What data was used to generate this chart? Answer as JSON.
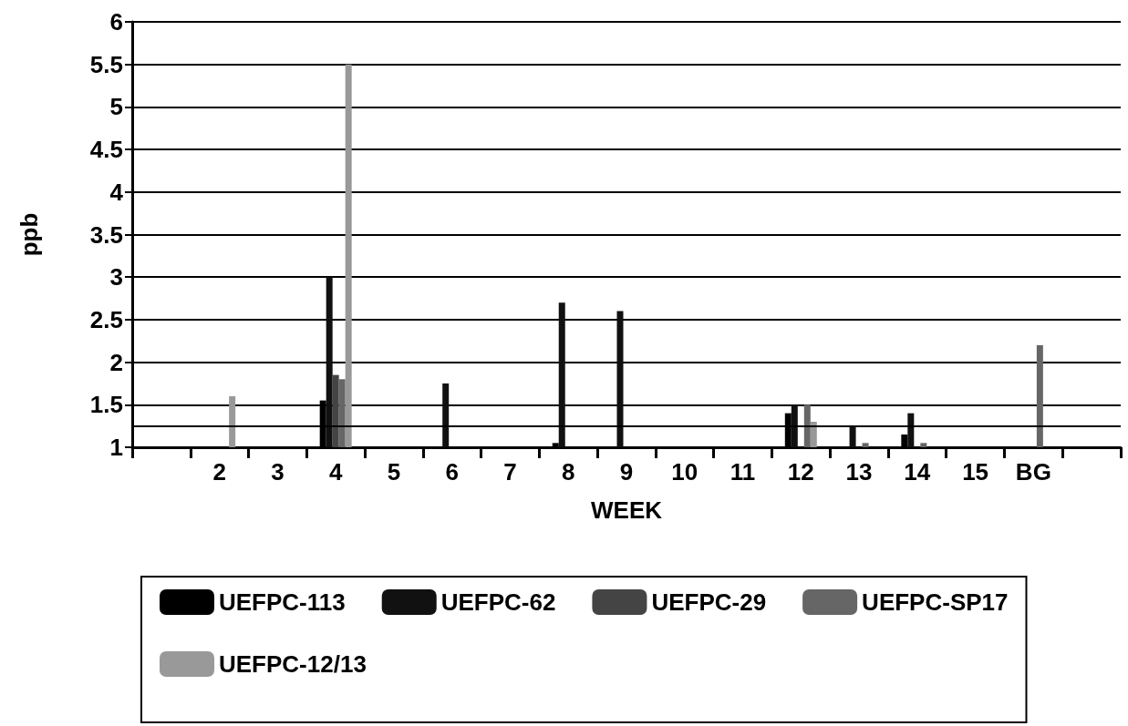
{
  "chart_data": {
    "type": "bar",
    "xlabel": "WEEK",
    "ylabel": "ppb",
    "categories": [
      null,
      "2",
      "3",
      "4",
      "5",
      "6",
      "7",
      "8",
      "9",
      "10",
      "11",
      "12",
      "13",
      "14",
      "15",
      "BG",
      null
    ],
    "series": [
      {
        "name": "UEFPC-113",
        "color": "#000000",
        "values": [
          null,
          null,
          null,
          1.55,
          null,
          null,
          null,
          1.05,
          null,
          null,
          null,
          1.4,
          null,
          1.15,
          null,
          null,
          null
        ]
      },
      {
        "name": "UEFPC-62",
        "color": "#111111",
        "values": [
          null,
          null,
          null,
          3.0,
          null,
          1.75,
          null,
          2.7,
          2.6,
          null,
          null,
          1.5,
          1.25,
          1.4,
          null,
          null,
          null
        ]
      },
      {
        "name": "UEFPC-29",
        "color": "#444444",
        "values": [
          null,
          null,
          null,
          1.85,
          null,
          null,
          null,
          null,
          null,
          null,
          null,
          null,
          null,
          null,
          null,
          null,
          null
        ]
      },
      {
        "name": "UEFPC-SP17",
        "color": "#666666",
        "values": [
          null,
          null,
          null,
          1.8,
          null,
          null,
          null,
          null,
          null,
          null,
          null,
          1.5,
          1.05,
          1.05,
          null,
          2.2,
          null
        ]
      },
      {
        "name": "UEFPC-12/13",
        "color": "#999999",
        "values": [
          null,
          1.6,
          null,
          5.5,
          null,
          null,
          null,
          null,
          null,
          null,
          null,
          1.3,
          null,
          null,
          null,
          null,
          null
        ]
      }
    ],
    "ylim": [
      1,
      6
    ],
    "yticks": [
      1,
      1.5,
      2,
      2.5,
      3,
      3.5,
      4,
      4.5,
      5,
      5.5,
      6
    ],
    "ref_lines": [
      {
        "axis": "y",
        "value": 1.25,
        "label": null
      }
    ],
    "grid": "y",
    "legend": "bottom"
  }
}
